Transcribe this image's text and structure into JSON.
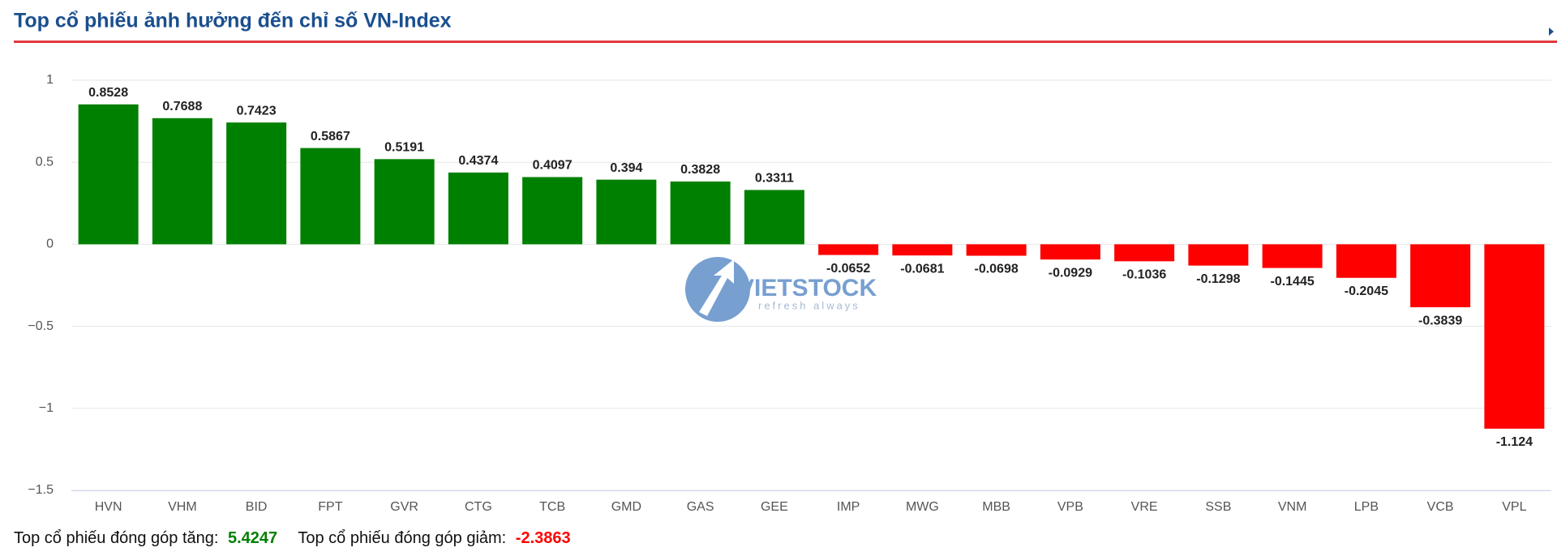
{
  "chart_data": {
    "type": "bar",
    "title": "Top cổ phiếu ảnh hưởng đến chỉ số VN-Index",
    "categories": [
      "HVN",
      "VHM",
      "BID",
      "FPT",
      "GVR",
      "CTG",
      "TCB",
      "GMD",
      "GAS",
      "GEE",
      "IMP",
      "MWG",
      "MBB",
      "VPB",
      "VRE",
      "SSB",
      "VNM",
      "LPB",
      "VCB",
      "VPL"
    ],
    "values": [
      0.8528,
      0.7688,
      0.7423,
      0.5867,
      0.5191,
      0.4374,
      0.4097,
      0.394,
      0.3828,
      0.3311,
      -0.0652,
      -0.0681,
      -0.0698,
      -0.0929,
      -0.1036,
      -0.1298,
      -0.1445,
      -0.2045,
      -0.3839,
      -1.124
    ],
    "colors": {
      "positive": "#008000",
      "negative": "#ff0000"
    },
    "ylim": [
      -1.5,
      1
    ],
    "yticks": [
      {
        "value": -1.5,
        "label": "−1.5"
      },
      {
        "value": -1,
        "label": "−1"
      },
      {
        "value": -0.5,
        "label": "−0.5"
      },
      0,
      0.5,
      1
    ],
    "grid": true,
    "watermark": {
      "name": "VIETSTOCK",
      "tagline": "refresh always"
    },
    "footer": {
      "up_label": "Top cổ phiếu đóng góp tăng:",
      "up_value": "5.4247",
      "down_label": "Top cổ phiếu đóng góp giảm:",
      "down_value": "-2.3863"
    }
  }
}
